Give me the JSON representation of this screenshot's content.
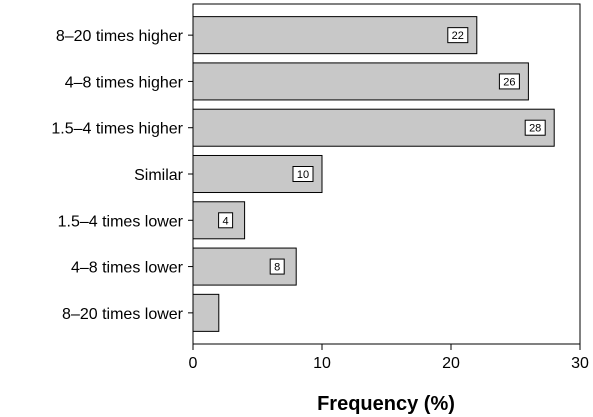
{
  "chart_data": {
    "type": "bar",
    "orientation": "horizontal",
    "categories": [
      "8–20 times higher",
      "4–8 times higher",
      "1.5–4 times higher",
      "Similar",
      "1.5–4 times lower",
      "4–8 times lower",
      "8–20 times lower"
    ],
    "values": [
      22,
      26,
      28,
      10,
      4,
      8,
      2
    ],
    "data_labels": [
      "22",
      "26",
      "28",
      "10",
      "4",
      "8",
      ""
    ],
    "title": "",
    "xlabel": "Frequency (%)",
    "ylabel": "",
    "xlim": [
      0,
      30
    ],
    "x_ticks": [
      "0",
      "10",
      "20",
      "30"
    ],
    "grid": false,
    "bar_color": "#c8c8c8",
    "bar_edge_color": "#000000"
  }
}
